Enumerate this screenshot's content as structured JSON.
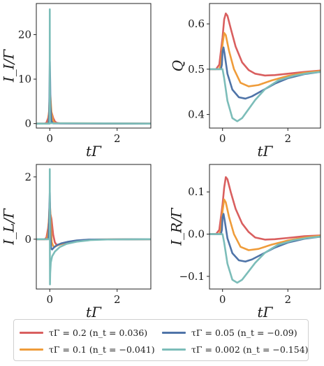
{
  "chart_data": [
    {
      "panel": "top-left",
      "type": "line",
      "xlabel": "tΓ",
      "ylabel": "I_I/Γ",
      "xlim": [
        -0.4,
        3
      ],
      "ylim": [
        -1,
        27
      ],
      "xticks": [
        0,
        2
      ],
      "yticks": [
        0,
        10,
        20
      ],
      "x_tick_labels": [
        "0",
        "2"
      ],
      "y_tick_labels": [
        "0",
        "10",
        "20"
      ],
      "series": [
        {
          "color": "#d95f5f",
          "x": [
            -0.4,
            -0.15,
            -0.1,
            -0.05,
            0,
            0.02,
            0.05,
            0.1,
            0.15,
            0.2,
            0.3,
            3
          ],
          "y": [
            0,
            0,
            0.2,
            1.2,
            3.6,
            3.5,
            2.6,
            1.3,
            0.5,
            0.2,
            0.05,
            0
          ]
        },
        {
          "color": "#ef9c3a",
          "x": [
            -0.4,
            -0.08,
            -0.04,
            -0.02,
            0,
            0.02,
            0.05,
            0.1,
            0.15,
            3
          ],
          "y": [
            0,
            0,
            0.5,
            3.0,
            7.0,
            6.0,
            2.5,
            0.5,
            0.1,
            0
          ]
        },
        {
          "color": "#4f74a8",
          "x": [
            -0.4,
            -0.04,
            -0.02,
            -0.01,
            0,
            0.01,
            0.02,
            0.05,
            0.1,
            3
          ],
          "y": [
            0,
            0,
            1.5,
            6.0,
            14,
            10,
            4,
            0.5,
            0.05,
            0
          ]
        },
        {
          "color": "#7cbdb9",
          "x": [
            -0.4,
            -0.005,
            -0.002,
            0,
            0.002,
            0.005,
            0.01,
            3
          ],
          "y": [
            0,
            0,
            8,
            25.7,
            12,
            2,
            0.1,
            0
          ]
        }
      ]
    },
    {
      "panel": "top-right",
      "type": "line",
      "xlabel": "tΓ",
      "ylabel": "Q",
      "xlim": [
        -0.4,
        3
      ],
      "ylim": [
        0.37,
        0.645
      ],
      "xticks": [
        0,
        2
      ],
      "yticks": [
        0.4,
        0.5,
        0.6
      ],
      "x_tick_labels": [
        "0",
        "2"
      ],
      "y_tick_labels": [
        "0.4",
        "0.5",
        "0.6"
      ],
      "series": [
        {
          "color": "#d95f5f",
          "x": [
            -0.4,
            -0.2,
            -0.1,
            0,
            0.05,
            0.1,
            0.15,
            0.25,
            0.4,
            0.6,
            0.8,
            1.0,
            1.3,
            1.6,
            2,
            2.5,
            3
          ],
          "y": [
            0.5,
            0.5,
            0.51,
            0.57,
            0.61,
            0.623,
            0.618,
            0.59,
            0.55,
            0.515,
            0.498,
            0.49,
            0.486,
            0.487,
            0.49,
            0.494,
            0.497
          ]
        },
        {
          "color": "#ef9c3a",
          "x": [
            -0.4,
            -0.1,
            -0.05,
            0,
            0.05,
            0.1,
            0.2,
            0.35,
            0.55,
            0.8,
            1.1,
            1.5,
            2,
            2.5,
            3
          ],
          "y": [
            0.5,
            0.5,
            0.51,
            0.555,
            0.58,
            0.575,
            0.54,
            0.5,
            0.47,
            0.462,
            0.465,
            0.475,
            0.485,
            0.492,
            0.496
          ]
        },
        {
          "color": "#4f74a8",
          "x": [
            -0.4,
            -0.05,
            -0.02,
            0,
            0.03,
            0.06,
            0.15,
            0.3,
            0.5,
            0.7,
            0.9,
            1.2,
            1.6,
            2,
            2.5,
            3
          ],
          "y": [
            0.5,
            0.5,
            0.51,
            0.54,
            0.548,
            0.535,
            0.49,
            0.455,
            0.438,
            0.435,
            0.44,
            0.452,
            0.468,
            0.48,
            0.489,
            0.494
          ]
        },
        {
          "color": "#7cbdb9",
          "x": [
            -0.4,
            0,
            0.05,
            0.15,
            0.3,
            0.45,
            0.6,
            0.8,
            1.0,
            1.3,
            1.7,
            2.2,
            2.6,
            3
          ],
          "y": [
            0.5,
            0.5,
            0.48,
            0.43,
            0.392,
            0.385,
            0.392,
            0.412,
            0.432,
            0.456,
            0.475,
            0.486,
            0.491,
            0.494
          ]
        }
      ]
    },
    {
      "panel": "bottom-left",
      "type": "line",
      "xlabel": "tΓ",
      "ylabel": "I_L/Γ",
      "xlim": [
        -0.4,
        3
      ],
      "ylim": [
        -1.6,
        2.4
      ],
      "xticks": [
        0,
        2
      ],
      "yticks": [
        0,
        2
      ],
      "x_tick_labels": [
        "0",
        "2"
      ],
      "y_tick_labels": [
        "0",
        "2"
      ],
      "series": [
        {
          "color": "#d95f5f",
          "x": [
            -0.4,
            -0.15,
            -0.1,
            -0.05,
            0,
            0.05,
            0.1,
            0.15,
            0.2,
            0.3,
            0.45,
            0.6,
            0.8,
            1.0,
            1.3,
            3
          ],
          "y": [
            0,
            0,
            0.05,
            0.35,
            0.9,
            0.65,
            0.15,
            -0.1,
            -0.18,
            -0.17,
            -0.12,
            -0.08,
            -0.05,
            -0.03,
            -0.01,
            0
          ]
        },
        {
          "color": "#ef9c3a",
          "x": [
            -0.4,
            -0.08,
            -0.04,
            -0.02,
            0,
            0.03,
            0.06,
            0.1,
            0.15,
            0.25,
            0.4,
            0.6,
            0.9,
            1.3,
            3
          ],
          "y": [
            0,
            0,
            0.3,
            0.8,
            1.2,
            0.6,
            -0.1,
            -0.22,
            -0.24,
            -0.19,
            -0.13,
            -0.08,
            -0.04,
            -0.01,
            0
          ]
        },
        {
          "color": "#4f74a8",
          "x": [
            -0.4,
            -0.04,
            -0.02,
            0,
            0.01,
            0.02,
            0.04,
            0.07,
            0.12,
            0.2,
            0.35,
            0.55,
            0.8,
            1.2,
            3
          ],
          "y": [
            0,
            0,
            0.6,
            1.5,
            0.9,
            0.1,
            -0.3,
            -0.33,
            -0.27,
            -0.2,
            -0.13,
            -0.08,
            -0.04,
            -0.01,
            0
          ]
        },
        {
          "color": "#7cbdb9",
          "x": [
            -0.4,
            -0.003,
            0,
            0.003,
            0.006,
            0.012,
            0.03,
            0.07,
            0.15,
            0.3,
            0.5,
            0.8,
            1.2,
            1.7,
            3
          ],
          "y": [
            0,
            0,
            2.25,
            -0.5,
            -1.45,
            -1.1,
            -0.75,
            -0.55,
            -0.4,
            -0.25,
            -0.15,
            -0.08,
            -0.03,
            -0.01,
            0
          ]
        }
      ]
    },
    {
      "panel": "bottom-right",
      "type": "line",
      "xlabel": "tΓ",
      "ylabel": "I_R/Γ",
      "xlim": [
        -0.4,
        3
      ],
      "ylim": [
        -0.13,
        0.165
      ],
      "xticks": [
        0,
        2
      ],
      "yticks": [
        -0.1,
        0.0,
        0.1
      ],
      "x_tick_labels": [
        "0",
        "2"
      ],
      "y_tick_labels": [
        "−0.1",
        "0.0",
        "0.1"
      ],
      "series": [
        {
          "color": "#d95f5f",
          "x": [
            -0.4,
            -0.2,
            -0.1,
            0,
            0.05,
            0.1,
            0.15,
            0.25,
            0.4,
            0.6,
            0.8,
            1.0,
            1.3,
            1.6,
            2,
            2.5,
            3
          ],
          "y": [
            0,
            0,
            0.01,
            0.07,
            0.11,
            0.135,
            0.13,
            0.1,
            0.06,
            0.025,
            0.005,
            -0.008,
            -0.013,
            -0.012,
            -0.009,
            -0.005,
            -0.003
          ]
        },
        {
          "color": "#ef9c3a",
          "x": [
            -0.4,
            -0.1,
            -0.05,
            0,
            0.05,
            0.1,
            0.2,
            0.35,
            0.55,
            0.8,
            1.1,
            1.5,
            2,
            2.5,
            3
          ],
          "y": [
            0,
            0,
            0.01,
            0.055,
            0.082,
            0.075,
            0.04,
            0.0,
            -0.03,
            -0.038,
            -0.035,
            -0.025,
            -0.015,
            -0.008,
            -0.004
          ]
        },
        {
          "color": "#4f74a8",
          "x": [
            -0.4,
            -0.05,
            -0.02,
            0,
            0.03,
            0.06,
            0.15,
            0.3,
            0.5,
            0.7,
            0.9,
            1.2,
            1.6,
            2,
            2.5,
            3
          ],
          "y": [
            0,
            0,
            0.01,
            0.04,
            0.048,
            0.035,
            -0.01,
            -0.045,
            -0.062,
            -0.065,
            -0.06,
            -0.048,
            -0.032,
            -0.02,
            -0.011,
            -0.006
          ]
        },
        {
          "color": "#7cbdb9",
          "x": [
            -0.4,
            0,
            0.05,
            0.15,
            0.3,
            0.45,
            0.6,
            0.8,
            1.0,
            1.3,
            1.7,
            2.2,
            2.6,
            3
          ],
          "y": [
            0,
            0,
            -0.02,
            -0.07,
            -0.108,
            -0.115,
            -0.108,
            -0.088,
            -0.068,
            -0.044,
            -0.025,
            -0.014,
            -0.009,
            -0.006
          ]
        }
      ]
    }
  ],
  "legend": [
    {
      "label": "τΓ = 0.2 (n_t = 0.036)",
      "color": "#d95f5f"
    },
    {
      "label": "τΓ = 0.05 (n_t = −0.09)",
      "color": "#4f74a8"
    },
    {
      "label": "τΓ = 0.1 (n_t = −0.041)",
      "color": "#ef9c3a"
    },
    {
      "label": "τΓ = 0.002 (n_t = −0.154)",
      "color": "#7cbdb9"
    }
  ]
}
